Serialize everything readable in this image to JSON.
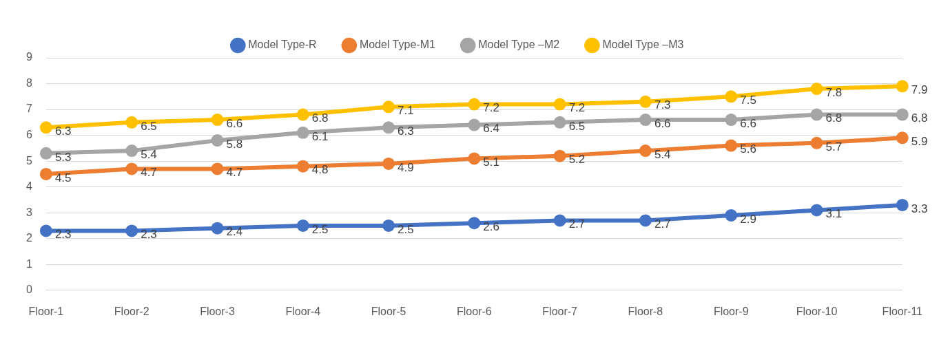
{
  "chart_data": {
    "type": "line",
    "categories": [
      "Floor-1",
      "Floor-2",
      "Floor-3",
      "Floor-4",
      "Floor-5",
      "Floor-6",
      "Floor-7",
      "Floor-8",
      "Floor-9",
      "Floor-10",
      "Floor-11"
    ],
    "series": [
      {
        "name": "Model Type-R",
        "color": "#4472c4",
        "values": [
          2.3,
          2.3,
          2.4,
          2.5,
          2.5,
          2.6,
          2.7,
          2.7,
          2.9,
          3.1,
          3.3
        ]
      },
      {
        "name": "Model Type-M1",
        "color": "#ed7d31",
        "values": [
          4.5,
          4.7,
          4.7,
          4.8,
          4.9,
          5.1,
          5.2,
          5.4,
          5.6,
          5.7,
          5.9
        ]
      },
      {
        "name": "Model Type –M2",
        "color": "#a5a5a5",
        "values": [
          5.3,
          5.4,
          5.8,
          6.1,
          6.3,
          6.4,
          6.5,
          6.6,
          6.6,
          6.8,
          6.8
        ]
      },
      {
        "name": "Model Type –M3",
        "color": "#ffc000",
        "values": [
          6.3,
          6.5,
          6.6,
          6.8,
          7.1,
          7.2,
          7.2,
          7.3,
          7.5,
          7.8,
          7.9
        ]
      }
    ],
    "ylim": [
      0,
      9
    ],
    "yticks": [
      0,
      1,
      2,
      3,
      4,
      5,
      6,
      7,
      8,
      9
    ],
    "grid": "y",
    "legend": "top",
    "marker": "circle",
    "line_style": "solid",
    "data_labels": true
  }
}
